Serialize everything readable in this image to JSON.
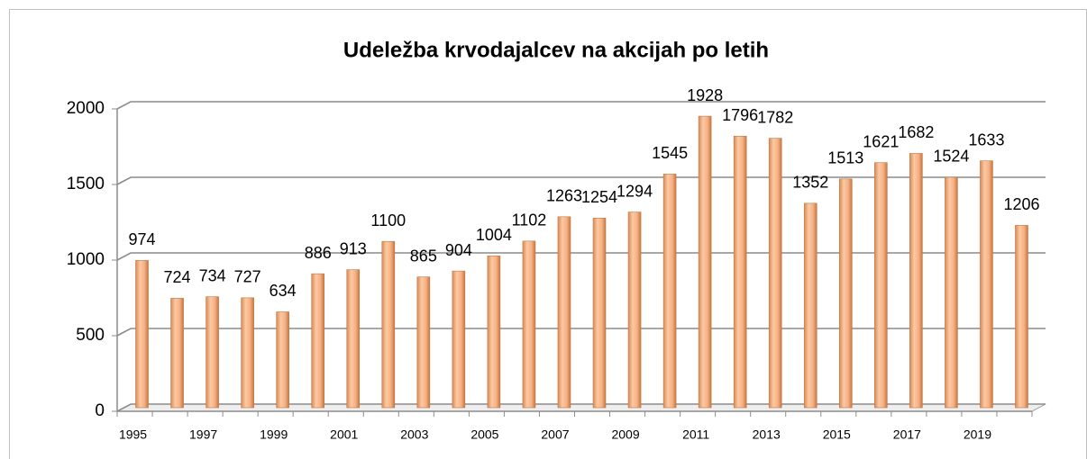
{
  "chart_data": {
    "type": "bar",
    "title": "Udeležba krvodajalcev na akcijah po letih",
    "categories": [
      "1995",
      null,
      "1997",
      null,
      "1999",
      null,
      "2001",
      null,
      "2003",
      null,
      "2005",
      null,
      "2007",
      null,
      "2009",
      null,
      "2011",
      null,
      "2013",
      null,
      "2015",
      null,
      "2017",
      null,
      "2019",
      null
    ],
    "values": [
      974,
      724,
      734,
      727,
      634,
      886,
      913,
      1100,
      865,
      904,
      1004,
      1102,
      1263,
      1254,
      1294,
      1545,
      1928,
      1796,
      1782,
      1352,
      1513,
      1621,
      1682,
      1524,
      1633,
      1206
    ],
    "color": "#f4b183",
    "ylim": [
      0,
      2000
    ],
    "yticks": [
      0,
      500,
      1000,
      1500,
      2000
    ],
    "grid": true
  }
}
